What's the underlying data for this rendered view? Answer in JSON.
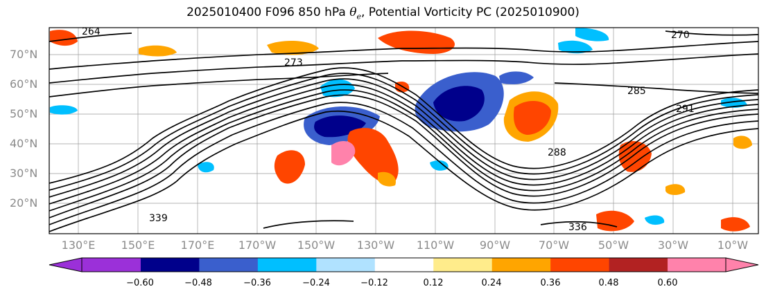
{
  "title": {
    "prefix": "2025010400 F096 850 hPa ",
    "theta": "θ",
    "theta_sub": "e",
    "suffix": ", Potential Vorticity PC (2025010900)"
  },
  "lat_labels": [
    "70°N",
    "60°N",
    "50°N",
    "40°N",
    "30°N",
    "20°N"
  ],
  "lon_labels": [
    "130°E",
    "150°E",
    "170°E",
    "170°W",
    "150°W",
    "130°W",
    "110°W",
    "90°W",
    "70°W",
    "50°W",
    "30°W",
    "10°W"
  ],
  "contour_labels": [
    "264",
    "273",
    "270",
    "285",
    "291",
    "288",
    "339",
    "336"
  ],
  "colorbar": {
    "ticks": [
      "−0.60",
      "−0.48",
      "−0.36",
      "−0.24",
      "−0.12",
      "0.12",
      "0.24",
      "0.36",
      "0.48",
      "0.60"
    ],
    "colors": [
      "#9b30d9",
      "#00008b",
      "#3a5fcd",
      "#00bfff",
      "#b0e2ff",
      "#ffffff",
      "#ffec8b",
      "#ffa500",
      "#ff4500",
      "#b22222",
      "#ff82ab"
    ]
  }
}
